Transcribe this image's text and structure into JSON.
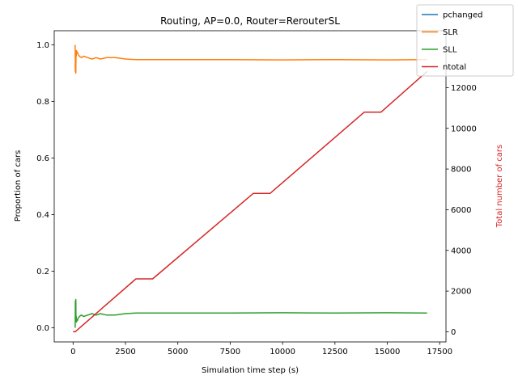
{
  "chart_data": {
    "type": "line",
    "title": "Routing, AP=0.0, Router=RerouterSL",
    "xlabel": "Simulation time step (s)",
    "ylabel": "Proportion of cars",
    "y2label": "Total number of cars",
    "xlim": [
      -900,
      17800
    ],
    "ylim": [
      -0.05,
      1.05
    ],
    "y2lim": [
      -500,
      14800
    ],
    "xticks": [
      0,
      2500,
      5000,
      7500,
      10000,
      12500,
      15000,
      17500
    ],
    "xtick_labels": [
      "0",
      "2500",
      "5000",
      "7500",
      "10000",
      "12500",
      "15000",
      "17500"
    ],
    "yticks": [
      0.0,
      0.2,
      0.4,
      0.6,
      0.8,
      1.0
    ],
    "ytick_labels": [
      "0.0",
      "0.2",
      "0.4",
      "0.6",
      "0.8",
      "1.0"
    ],
    "y2ticks": [
      0,
      2000,
      4000,
      6000,
      8000,
      10000,
      12000
    ],
    "y2tick_labels": [
      "0",
      "2000",
      "4000",
      "6000",
      "8000",
      "10000",
      "12000"
    ],
    "legend_placement": "top-right",
    "grid": false,
    "series": [
      {
        "name": "pchanged",
        "axis": "left",
        "color": "#1f77b4",
        "x": [],
        "y": []
      },
      {
        "name": "SLR",
        "axis": "left",
        "color": "#ff7f0e",
        "x": [
          100,
          110,
          120,
          130,
          140,
          150,
          160,
          180,
          200,
          250,
          300,
          400,
          500,
          700,
          900,
          1100,
          1300,
          1600,
          2000,
          2500,
          3000,
          5000,
          7500,
          10000,
          12500,
          15000,
          16900
        ],
        "y": [
          1.0,
          0.905,
          0.97,
          0.9,
          0.975,
          0.96,
          0.98,
          0.97,
          0.975,
          0.965,
          0.96,
          0.955,
          0.96,
          0.955,
          0.95,
          0.955,
          0.95,
          0.955,
          0.955,
          0.95,
          0.948,
          0.948,
          0.948,
          0.947,
          0.948,
          0.947,
          0.948
        ]
      },
      {
        "name": "SLL",
        "axis": "left",
        "color": "#2ca02c",
        "x": [
          100,
          110,
          120,
          130,
          140,
          150,
          160,
          180,
          200,
          250,
          300,
          400,
          500,
          700,
          900,
          1100,
          1300,
          1600,
          2000,
          2500,
          3000,
          5000,
          7500,
          10000,
          12500,
          15000,
          16900
        ],
        "y": [
          0.0,
          0.095,
          0.03,
          0.1,
          0.025,
          0.04,
          0.02,
          0.03,
          0.025,
          0.035,
          0.04,
          0.045,
          0.04,
          0.045,
          0.05,
          0.045,
          0.05,
          0.045,
          0.045,
          0.05,
          0.052,
          0.052,
          0.052,
          0.053,
          0.052,
          0.053,
          0.052
        ]
      },
      {
        "name": "ntotal",
        "axis": "right",
        "color": "#d62728",
        "x": [
          0,
          100,
          3000,
          3800,
          8600,
          9400,
          13900,
          14700,
          16900
        ],
        "y": [
          0,
          0,
          2600,
          2600,
          6800,
          6800,
          10800,
          10800,
          12800
        ]
      }
    ]
  }
}
